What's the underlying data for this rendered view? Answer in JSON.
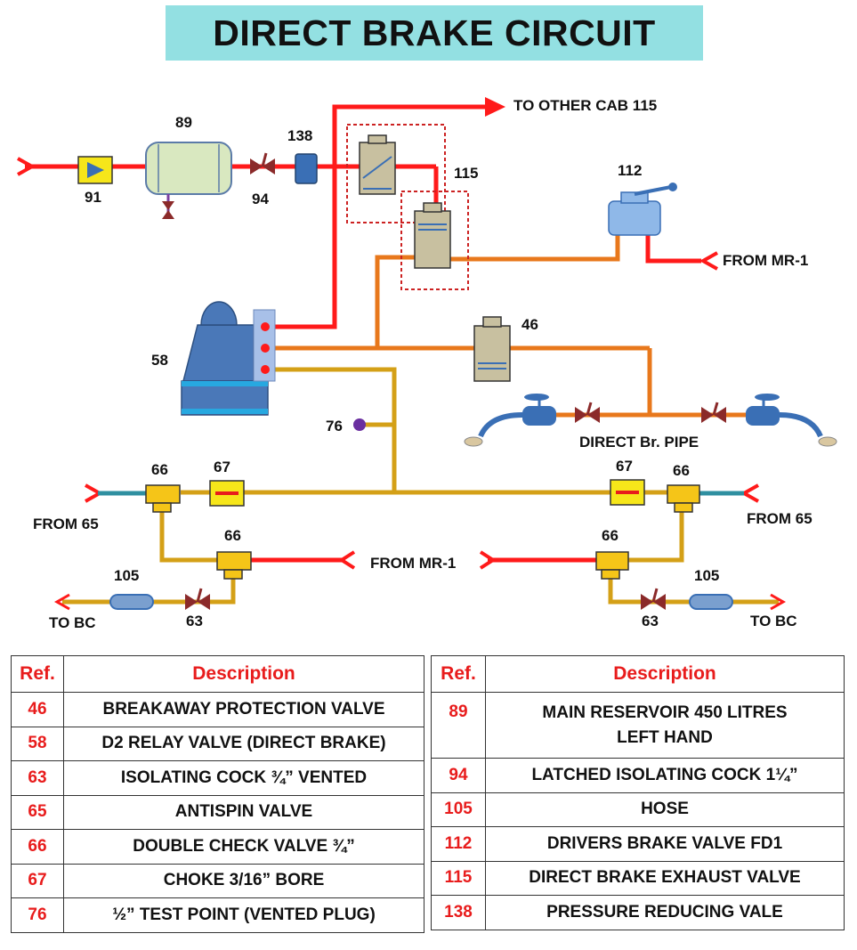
{
  "title": "DIRECT BRAKE CIRCUIT",
  "diagram": {
    "labels": {
      "to_other_cab": "TO OTHER CAB 115",
      "from_mr1_top": "FROM MR-1",
      "direct_br_pipe": "DIRECT Br. PIPE",
      "from_65_left": "FROM 65",
      "from_65_right": "FROM 65",
      "from_mr1_mid": "FROM MR-1",
      "to_bc_left": "TO BC",
      "to_bc_right": "TO BC"
    },
    "refs": {
      "r89": "89",
      "r91": "91",
      "r94": "94",
      "r138": "138",
      "r115": "115",
      "r112": "112",
      "r58": "58",
      "r46": "46",
      "r76": "76",
      "r66_tl": "66",
      "r67_l": "67",
      "r67_r": "67",
      "r66_tr": "66",
      "r66_ml": "66",
      "r66_mr": "66",
      "r105_l": "105",
      "r105_r": "105",
      "r63_l": "63",
      "r63_r": "63"
    },
    "colors": {
      "main_reservoir_pipe": "#ff1a1a",
      "direct_brake_pipe": "#e8781c",
      "brake_cylinder_pipe": "#d4a017",
      "antispin_pipe": "#2f8fa0"
    }
  },
  "tables": {
    "header_ref": "Ref.",
    "header_desc": "Description",
    "left": [
      {
        "ref": "46",
        "desc": "BREAKAWAY PROTECTION VALVE"
      },
      {
        "ref": "58",
        "desc": "D2 RELAY VALVE (DIRECT BRAKE)"
      },
      {
        "ref": "63",
        "desc": "ISOLATING COCK ¾” VENTED"
      },
      {
        "ref": "65",
        "desc": "ANTISPIN VALVE"
      },
      {
        "ref": "66",
        "desc": "DOUBLE CHECK VALVE ¾”"
      },
      {
        "ref": "67",
        "desc": "CHOKE 3/16” BORE"
      },
      {
        "ref": "76",
        "desc": "½” TEST POINT (VENTED PLUG)"
      }
    ],
    "right": [
      {
        "ref": "89",
        "desc_line1": "MAIN RESERVOIR 450 LITRES",
        "desc_line2": "LEFT HAND"
      },
      {
        "ref": "94",
        "desc": "LATCHED ISOLATING COCK 1¼”"
      },
      {
        "ref": "105",
        "desc": "HOSE"
      },
      {
        "ref": "112",
        "desc": "DRIVERS BRAKE VALVE FD1"
      },
      {
        "ref": "115",
        "desc": "DIRECT BRAKE EXHAUST VALVE"
      },
      {
        "ref": "138",
        "desc": "PRESSURE REDUCING VALE"
      }
    ]
  }
}
